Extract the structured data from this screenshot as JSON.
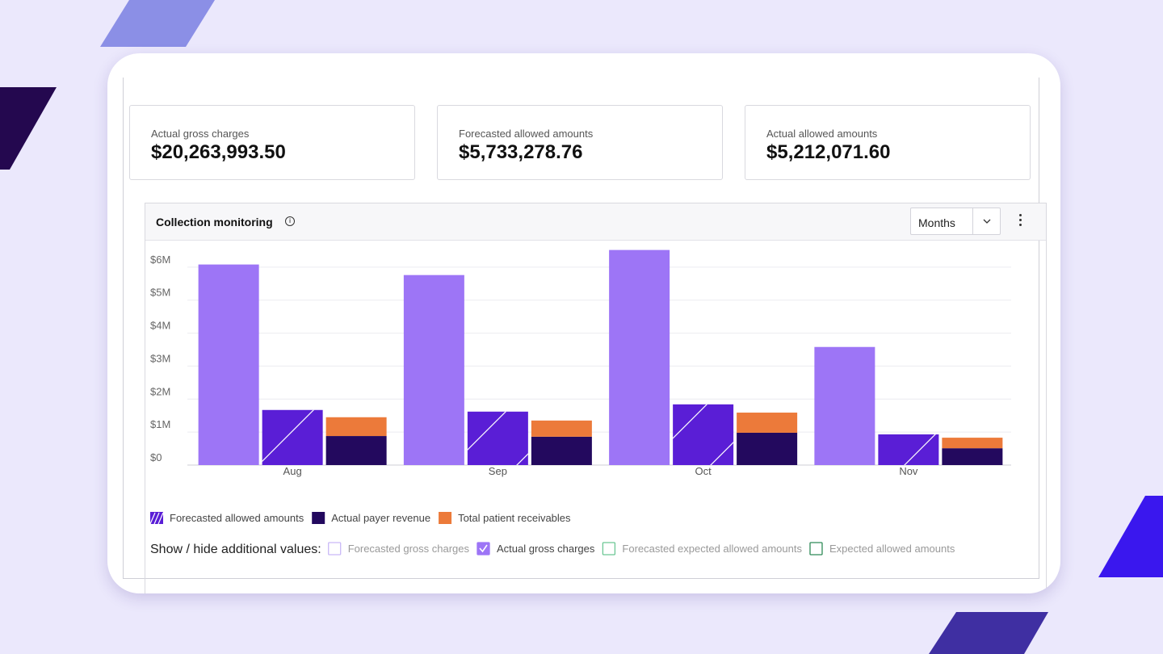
{
  "cards": [
    {
      "label": "Actual gross charges",
      "value": "$20,263,993.50"
    },
    {
      "label": "Forecasted allowed amounts",
      "value": "$5,733,278.76"
    },
    {
      "label": "Actual allowed amounts",
      "value": "$5,212,071.60"
    }
  ],
  "period": "Months",
  "chart_data": {
    "type": "bar",
    "title": "Collection monitoring",
    "categories": [
      "Aug",
      "Sep",
      "Oct",
      "Nov"
    ],
    "series": [
      {
        "name": "Actual gross charges",
        "color": "#9d75f6",
        "values": [
          6080000,
          5760000,
          6520000,
          3580000
        ]
      },
      {
        "name": "Forecasted allowed amounts",
        "color": "#5a1ed6",
        "pattern": "hatch",
        "values": [
          1670000,
          1620000,
          1840000,
          930000
        ]
      },
      {
        "name": "Actual payer revenue",
        "color": "#23095e",
        "stack": true,
        "values": [
          880000,
          860000,
          980000,
          510000
        ]
      },
      {
        "name": "Total patient receivables",
        "color": "#ec7a3a",
        "stack": true,
        "values": [
          570000,
          490000,
          610000,
          320000
        ]
      }
    ],
    "ylim": [
      0,
      7000000
    ],
    "yticks": [
      {
        "value": 0,
        "label": "$0"
      },
      {
        "value": 1000000,
        "label": "$1M"
      },
      {
        "value": 2000000,
        "label": "$2M"
      },
      {
        "value": 3000000,
        "label": "$3M"
      },
      {
        "value": 4000000,
        "label": "$4M"
      },
      {
        "value": 5000000,
        "label": "$5M"
      },
      {
        "value": 6000000,
        "label": "$6M"
      }
    ],
    "grid": true,
    "toggle_label": "Show / hide additional values:",
    "toggles": [
      {
        "name": "Forecasted gross charges",
        "color": "#c9b8f7",
        "checked": false
      },
      {
        "series": 0,
        "checked": true
      },
      {
        "name": "Forecasted expected allowed amounts",
        "color": "#6cc795",
        "checked": false
      },
      {
        "name": "Expected allowed amounts",
        "color": "#2f8a57",
        "checked": false
      }
    ]
  }
}
